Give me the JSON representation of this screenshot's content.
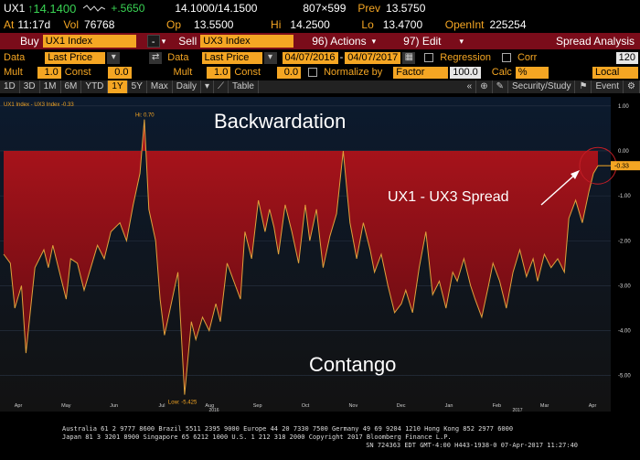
{
  "quote": {
    "ticker": "UX1",
    "last": "14.1400",
    "last_arrow": "↑",
    "change": "+.5650",
    "bid_ask": "14.1000/14.1500",
    "size": "807×599",
    "prev_label": "Prev",
    "prev": "13.5750",
    "at_label": "At",
    "time": "11:17d",
    "vol_label": "Vol",
    "vol": "76768",
    "op_label": "Op",
    "op": "13.5500",
    "hi_label": "Hi",
    "hi": "14.2500",
    "lo_label": "Lo",
    "lo": "13.4700",
    "oi_label": "OpenInt",
    "oi": "225254"
  },
  "cmd": {
    "buy_label": "Buy",
    "buy_security": "UX1 Index",
    "minus": "-",
    "sell_label": "Sell",
    "sell_security": "UX3 Index",
    "actions": "96) Actions",
    "edit": "97) Edit",
    "spread": "Spread Analysis"
  },
  "settings1": {
    "data_label": "Data",
    "data_value": "Last Price",
    "data2_label": "Data",
    "data2_value": "Last Price",
    "start_date": "04/07/2016",
    "end_date": "04/07/2017",
    "regression": "Regression",
    "corr": "Corr",
    "corr_value": "120"
  },
  "settings2": {
    "mult_label": "Mult",
    "mult_value": "1.0",
    "const_label": "Const",
    "const_value": "0.0",
    "mult2_label": "Mult",
    "mult2_value": "1.0",
    "const2_label": "Const",
    "const2_value": "0.0",
    "normalize": "Normalize by",
    "factor": "Factor",
    "factor_value": "100.0",
    "calc": "Calc",
    "calc_value": "%",
    "local": "Local"
  },
  "tabs": {
    "items": [
      "1D",
      "3D",
      "1M",
      "6M",
      "YTD",
      "1Y",
      "5Y",
      "Max"
    ],
    "period": "Daily",
    "table": "Table",
    "security_study": "Security/Study",
    "event": "Event"
  },
  "chart_data": {
    "type": "area",
    "legend": "UX1 Index - UX3 Index -0.33",
    "annotations": {
      "top": "Backwardation",
      "bottom": "Contango",
      "series_label": "UX1 - UX3 Spread",
      "high": "Hi: 0.70",
      "low": "Low: -5.425",
      "last_value": "-0.33"
    },
    "x_ticks": [
      "Apr",
      "May",
      "Jun",
      "Jul",
      "Aug",
      "Sep",
      "Oct",
      "Nov",
      "Dec",
      "Jan",
      "Feb",
      "Mar",
      "Apr"
    ],
    "year_labels": [
      "2016",
      "2017"
    ],
    "y_ticks": [
      "1.00",
      "0.00",
      "-1.00",
      "-2.00",
      "-3.00",
      "-4.00",
      "-5.00"
    ],
    "ylim": [
      -5.8,
      1.2
    ],
    "x": [
      0,
      3,
      5,
      8,
      10,
      14,
      18,
      20,
      22,
      25,
      28,
      30,
      33,
      36,
      39,
      42,
      45,
      48,
      52,
      55,
      58,
      61,
      63,
      65,
      68,
      70,
      72,
      75,
      78,
      81,
      84,
      86,
      89,
      92,
      95,
      97,
      100,
      103,
      106,
      108,
      111,
      114,
      117,
      119,
      121,
      123,
      126,
      129,
      132,
      135,
      137,
      140,
      143,
      146,
      149,
      152,
      155,
      158,
      161,
      164,
      166,
      169,
      172,
      175,
      178,
      180,
      183,
      186,
      189,
      192,
      195,
      198,
      201,
      203,
      206,
      209,
      211,
      214,
      217,
      219,
      222,
      225,
      228,
      231,
      234,
      237,
      239,
      242,
      245,
      248,
      251,
      253,
      256,
      259,
      262,
      264,
      266
    ],
    "values": [
      -2.3,
      -2.5,
      -3.5,
      -3.0,
      -4.5,
      -2.6,
      -2.2,
      -2.6,
      -2.1,
      -2.7,
      -3.3,
      -2.4,
      -2.5,
      -3.1,
      -2.6,
      -2.1,
      -2.4,
      -1.8,
      -1.6,
      -2.0,
      -1.2,
      -0.5,
      0.7,
      -1.3,
      -2.0,
      -3.3,
      -4.1,
      -3.4,
      -2.7,
      -5.425,
      -3.8,
      -4.2,
      -3.7,
      -4.0,
      -3.4,
      -3.8,
      -2.5,
      -2.9,
      -3.3,
      -1.8,
      -2.4,
      -1.1,
      -1.8,
      -1.3,
      -1.7,
      -2.3,
      -1.2,
      -1.8,
      -2.5,
      -1.2,
      -2.0,
      -1.3,
      -2.6,
      -1.9,
      -1.4,
      0.0,
      -1.6,
      -2.4,
      -1.6,
      -2.2,
      -2.7,
      -2.3,
      -3.0,
      -3.6,
      -3.4,
      -3.1,
      -3.6,
      -2.6,
      -1.8,
      -3.2,
      -2.9,
      -3.5,
      -2.7,
      -2.9,
      -2.4,
      -3.0,
      -3.3,
      -3.7,
      -3.0,
      -2.5,
      -2.9,
      -3.5,
      -2.7,
      -2.2,
      -2.8,
      -2.4,
      -2.9,
      -2.3,
      -2.6,
      -2.4,
      -2.7,
      -1.5,
      -1.1,
      -1.6,
      -0.9,
      -0.5,
      -0.33
    ]
  },
  "footer": {
    "line1": "Australia 61 2 9777 8600 Brazil 5511 2395 9000 Europe 44 20 7330 7500 Germany 49 69 9204 1210 Hong Kong 852 2977 6000",
    "line2": "Japan 81 3 3201 8900          Singapore 65 6212 1000        U.S. 1 212 318 2000        Copyright 2017 Bloomberg Finance L.P.",
    "line3": "SN 724363 EDT  GMT-4:00 H443-1938-0 07-Apr-2017 11:27:40"
  }
}
